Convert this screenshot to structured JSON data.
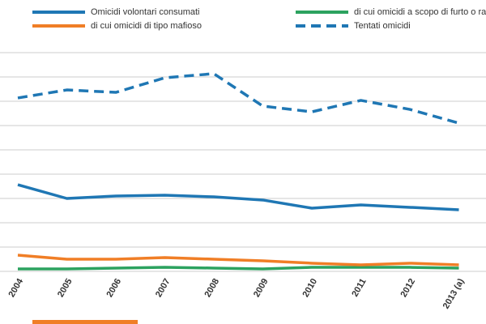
{
  "chart_data": {
    "type": "line",
    "categories": [
      "2004",
      "2005",
      "2006",
      "2007",
      "2008",
      "2009",
      "2010",
      "2011",
      "2012",
      "2013 (a)"
    ],
    "series": [
      {
        "name": "Omicidi volontari consumati",
        "color": "#1f77b4",
        "dash": false,
        "values": [
          713,
          600,
          620,
          627,
          613,
          587,
          520,
          547,
          527,
          507
        ]
      },
      {
        "name": "di cui omicidi a scopo di furto o rapina",
        "color": "#2ca25f",
        "dash": false,
        "values": [
          20,
          20,
          27,
          33,
          27,
          20,
          33,
          33,
          33,
          27
        ]
      },
      {
        "name": "di cui omicidi di tipo mafioso",
        "color": "#f07e26",
        "dash": false,
        "values": [
          133,
          100,
          100,
          113,
          100,
          87,
          67,
          53,
          67,
          53
        ]
      },
      {
        "name": "Tentati omicidi",
        "color": "#1f77b4",
        "dash": true,
        "values": [
          1427,
          1493,
          1473,
          1593,
          1627,
          1360,
          1313,
          1407,
          1333,
          1220
        ]
      }
    ],
    "ylim": [
      0,
      1900
    ],
    "yticks": [
      0,
      200,
      400,
      600,
      800,
      1000,
      1200,
      1400,
      1600,
      1800
    ],
    "grid": true
  }
}
